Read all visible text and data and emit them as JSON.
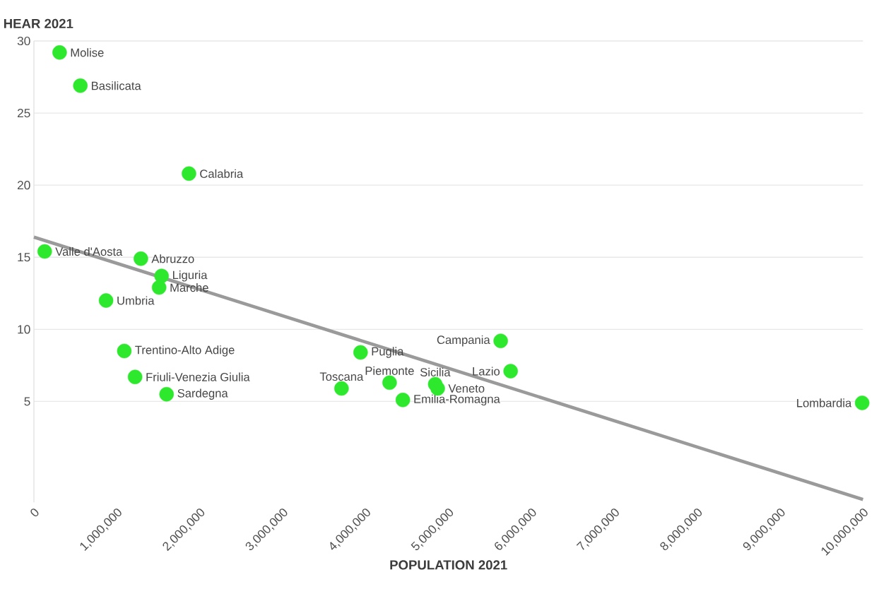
{
  "chart_data": {
    "type": "scatter",
    "ylabel": "HEAR 2021",
    "xlabel": "POPULATION 2021",
    "x": [
      310000,
      560000,
      1870000,
      130000,
      1290000,
      1540000,
      1510000,
      870000,
      1090000,
      1220000,
      1600000,
      3710000,
      3940000,
      4290000,
      4840000,
      4870000,
      4450000,
      5630000,
      5750000,
      9990000
    ],
    "series": [
      {
        "color": "#2ee82e",
        "marker": "circle",
        "values": [
          29.2,
          26.9,
          20.8,
          15.4,
          14.9,
          13.7,
          12.9,
          12.0,
          8.5,
          6.7,
          5.5,
          5.9,
          8.4,
          6.3,
          6.2,
          5.9,
          5.1,
          9.2,
          7.1,
          4.9
        ]
      },
      {
        "type": "line",
        "color": "#9a9a9a",
        "marker": "none",
        "line_style": "solid",
        "x": [
          0,
          10000000
        ],
        "values": [
          16.4,
          -1.8
        ]
      }
    ],
    "annotations": [
      {
        "text": "Molise",
        "x": 310000,
        "y": 29.2
      },
      {
        "text": "Basilicata",
        "x": 560000,
        "y": 26.9
      },
      {
        "text": "Calabria",
        "x": 1870000,
        "y": 20.8
      },
      {
        "text": "Valle d'Aosta",
        "x": 130000,
        "y": 15.4
      },
      {
        "text": "Abruzzo",
        "x": 1290000,
        "y": 14.9
      },
      {
        "text": "Liguria",
        "x": 1540000,
        "y": 13.7
      },
      {
        "text": "Marche",
        "x": 1510000,
        "y": 12.9
      },
      {
        "text": "Umbria",
        "x": 870000,
        "y": 12.0
      },
      {
        "text": "Trentino-Alto Adige",
        "x": 1090000,
        "y": 8.5
      },
      {
        "text": "Friuli-Venezia Giulia",
        "x": 1220000,
        "y": 6.7
      },
      {
        "text": "Sardegna",
        "x": 1600000,
        "y": 5.5
      },
      {
        "text": "Toscana",
        "x": 3710000,
        "y": 5.9
      },
      {
        "text": "Puglia",
        "x": 3940000,
        "y": 8.4
      },
      {
        "text": "Piemonte",
        "x": 4290000,
        "y": 6.3
      },
      {
        "text": "Sicilia",
        "x": 4840000,
        "y": 6.2
      },
      {
        "text": "Veneto",
        "x": 4870000,
        "y": 5.9
      },
      {
        "text": "Emilia-Romagna",
        "x": 4450000,
        "y": 5.1
      },
      {
        "text": "Campania",
        "x": 5630000,
        "y": 9.2
      },
      {
        "text": "Lazio",
        "x": 5750000,
        "y": 7.1
      },
      {
        "text": "Lombardia",
        "x": 9990000,
        "y": 4.9
      }
    ],
    "xlim": [
      0,
      10000000
    ],
    "ylim": [
      -2,
      30
    ],
    "xticks": [
      0,
      {
        "value": 1000000,
        "label": "1,000,000"
      },
      {
        "value": 2000000,
        "label": "2,000,000"
      },
      {
        "value": 3000000,
        "label": "3,000,000"
      },
      {
        "value": 4000000,
        "label": "4,000,000"
      },
      {
        "value": 5000000,
        "label": "5,000,000"
      },
      {
        "value": 6000000,
        "label": "6,000,000"
      },
      {
        "value": 7000000,
        "label": "7,000,000"
      },
      {
        "value": 8000000,
        "label": "8,000,000"
      },
      {
        "value": 9000000,
        "label": "9,000,000"
      },
      {
        "value": 10000000,
        "label": "10,000,000"
      }
    ],
    "yticks": [
      5,
      10,
      15,
      20,
      25,
      30
    ],
    "grid": "y"
  }
}
